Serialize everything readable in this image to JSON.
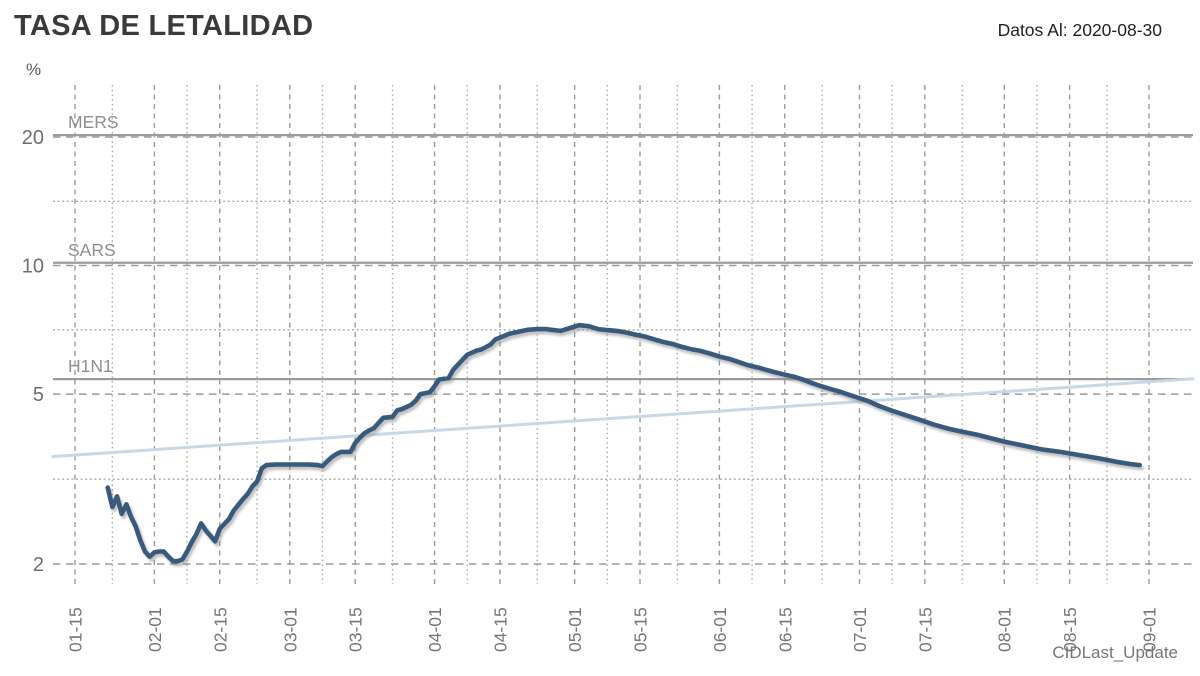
{
  "header": {
    "title": "TASA DE LETALIDAD",
    "data_as_of": "Datos Al: 2020-08-30"
  },
  "chart_data": {
    "type": "line",
    "title": "TASA DE LETALIDAD",
    "subtitle": "Datos Al: 2020-08-30",
    "x_axis_title": "CIDLast_Update",
    "y_unit": "%",
    "y_scale": "log",
    "ylim": [
      1.85,
      25
    ],
    "grid": "dashed-major-dotted-minor",
    "y_major_ticks": [
      2,
      5,
      10,
      20
    ],
    "y_minor_gridlines": [
      3.16,
      7.07,
      14.14
    ],
    "x_major_ticks": [
      "01-15",
      "02-01",
      "02-15",
      "03-01",
      "03-15",
      "04-01",
      "04-15",
      "05-01",
      "05-15",
      "06-01",
      "06-15",
      "07-01",
      "07-15",
      "08-01",
      "08-15",
      "09-01"
    ],
    "x_minor_gridlines": [
      "01-23",
      "02-08",
      "02-23",
      "03-08",
      "03-23",
      "04-08",
      "04-23",
      "05-08",
      "05-23",
      "06-08",
      "06-23",
      "07-08",
      "07-23",
      "08-08",
      "08-23"
    ],
    "reference_lines": [
      {
        "label": "MERS",
        "value": 20.2
      },
      {
        "label": "SARS",
        "value": 10.15
      },
      {
        "label": "H1N1",
        "value": 5.42
      }
    ],
    "series": [
      {
        "name": "tasa-de-letalidad",
        "color": "#395a7d",
        "points": [
          [
            "01-22",
            3.02
          ],
          [
            "01-23",
            2.72
          ],
          [
            "01-24",
            2.88
          ],
          [
            "01-25",
            2.62
          ],
          [
            "01-26",
            2.76
          ],
          [
            "01-27",
            2.58
          ],
          [
            "01-28",
            2.45
          ],
          [
            "01-29",
            2.27
          ],
          [
            "01-30",
            2.14
          ],
          [
            "01-31",
            2.08
          ],
          [
            "02-01",
            2.13
          ],
          [
            "02-02",
            2.14
          ],
          [
            "02-03",
            2.14
          ],
          [
            "02-04",
            2.08
          ],
          [
            "02-05",
            2.03
          ],
          [
            "02-06",
            2.03
          ],
          [
            "02-07",
            2.05
          ],
          [
            "02-08",
            2.14
          ],
          [
            "02-09",
            2.25
          ],
          [
            "02-10",
            2.35
          ],
          [
            "02-11",
            2.49
          ],
          [
            "02-12",
            2.4
          ],
          [
            "02-13",
            2.33
          ],
          [
            "02-14",
            2.26
          ],
          [
            "02-15",
            2.42
          ],
          [
            "02-17",
            2.55
          ],
          [
            "02-18",
            2.67
          ],
          [
            "02-20",
            2.84
          ],
          [
            "02-21",
            2.92
          ],
          [
            "02-22",
            3.04
          ],
          [
            "02-23",
            3.12
          ],
          [
            "02-24",
            3.35
          ],
          [
            "02-25",
            3.41
          ],
          [
            "02-27",
            3.42
          ],
          [
            "03-01",
            3.42
          ],
          [
            "03-03",
            3.42
          ],
          [
            "03-05",
            3.42
          ],
          [
            "03-07",
            3.41
          ],
          [
            "03-08",
            3.39
          ],
          [
            "03-09",
            3.48
          ],
          [
            "03-10",
            3.56
          ],
          [
            "03-11",
            3.62
          ],
          [
            "03-12",
            3.66
          ],
          [
            "03-14",
            3.66
          ],
          [
            "03-15",
            3.84
          ],
          [
            "03-16",
            3.95
          ],
          [
            "03-17",
            4.05
          ],
          [
            "03-18",
            4.11
          ],
          [
            "03-19",
            4.16
          ],
          [
            "03-21",
            4.4
          ],
          [
            "03-23",
            4.42
          ],
          [
            "03-24",
            4.58
          ],
          [
            "03-25",
            4.61
          ],
          [
            "03-27",
            4.72
          ],
          [
            "03-28",
            4.83
          ],
          [
            "03-29",
            5.0
          ],
          [
            "03-31",
            5.05
          ],
          [
            "04-01",
            5.22
          ],
          [
            "04-02",
            5.41
          ],
          [
            "04-04",
            5.45
          ],
          [
            "04-05",
            5.7
          ],
          [
            "04-07",
            6.02
          ],
          [
            "04-08",
            6.18
          ],
          [
            "04-10",
            6.32
          ],
          [
            "04-11",
            6.36
          ],
          [
            "04-13",
            6.53
          ],
          [
            "04-14",
            6.71
          ],
          [
            "04-16",
            6.85
          ],
          [
            "04-17",
            6.92
          ],
          [
            "04-19",
            7.0
          ],
          [
            "04-21",
            7.07
          ],
          [
            "04-23",
            7.1
          ],
          [
            "04-25",
            7.1
          ],
          [
            "04-26",
            7.07
          ],
          [
            "04-28",
            7.03
          ],
          [
            "04-30",
            7.14
          ],
          [
            "05-02",
            7.25
          ],
          [
            "05-04",
            7.21
          ],
          [
            "05-06",
            7.1
          ],
          [
            "05-08",
            7.06
          ],
          [
            "05-10",
            7.03
          ],
          [
            "05-12",
            6.97
          ],
          [
            "05-14",
            6.89
          ],
          [
            "05-16",
            6.82
          ],
          [
            "05-18",
            6.72
          ],
          [
            "05-20",
            6.62
          ],
          [
            "05-22",
            6.55
          ],
          [
            "05-24",
            6.45
          ],
          [
            "05-26",
            6.37
          ],
          [
            "05-28",
            6.31
          ],
          [
            "05-30",
            6.22
          ],
          [
            "06-01",
            6.12
          ],
          [
            "06-03",
            6.05
          ],
          [
            "06-05",
            5.95
          ],
          [
            "06-07",
            5.85
          ],
          [
            "06-09",
            5.78
          ],
          [
            "06-11",
            5.7
          ],
          [
            "06-13",
            5.62
          ],
          [
            "06-15",
            5.55
          ],
          [
            "06-17",
            5.49
          ],
          [
            "06-19",
            5.4
          ],
          [
            "06-21",
            5.3
          ],
          [
            "06-23",
            5.21
          ],
          [
            "06-25",
            5.13
          ],
          [
            "06-27",
            5.06
          ],
          [
            "06-29",
            4.97
          ],
          [
            "07-01",
            4.89
          ],
          [
            "07-03",
            4.81
          ],
          [
            "07-05",
            4.7
          ],
          [
            "07-08",
            4.57
          ],
          [
            "07-11",
            4.46
          ],
          [
            "07-14",
            4.35
          ],
          [
            "07-17",
            4.24
          ],
          [
            "07-20",
            4.15
          ],
          [
            "07-23",
            4.08
          ],
          [
            "07-26",
            4.02
          ],
          [
            "07-28",
            3.97
          ],
          [
            "08-01",
            3.87
          ],
          [
            "08-05",
            3.79
          ],
          [
            "08-09",
            3.71
          ],
          [
            "08-13",
            3.66
          ],
          [
            "08-17",
            3.6
          ],
          [
            "08-21",
            3.54
          ],
          [
            "08-25",
            3.47
          ],
          [
            "08-28",
            3.43
          ],
          [
            "08-30",
            3.41
          ]
        ]
      },
      {
        "name": "comparison-trend",
        "color": "#c9d8e8",
        "span": "full-plot-width",
        "start_value": 3.57,
        "end_value": 5.43
      }
    ],
    "colors": {
      "series_main": "#395a7d",
      "series_trend": "#c9d8e8",
      "gridline_dashed": "#9b9b9b",
      "gridline_dotted": "#a9a9a9",
      "reference_line": "#9b9b9b",
      "tick_label": "#757575",
      "reference_label": "#8f8f8f",
      "shadow": "#8a8a8a"
    }
  }
}
